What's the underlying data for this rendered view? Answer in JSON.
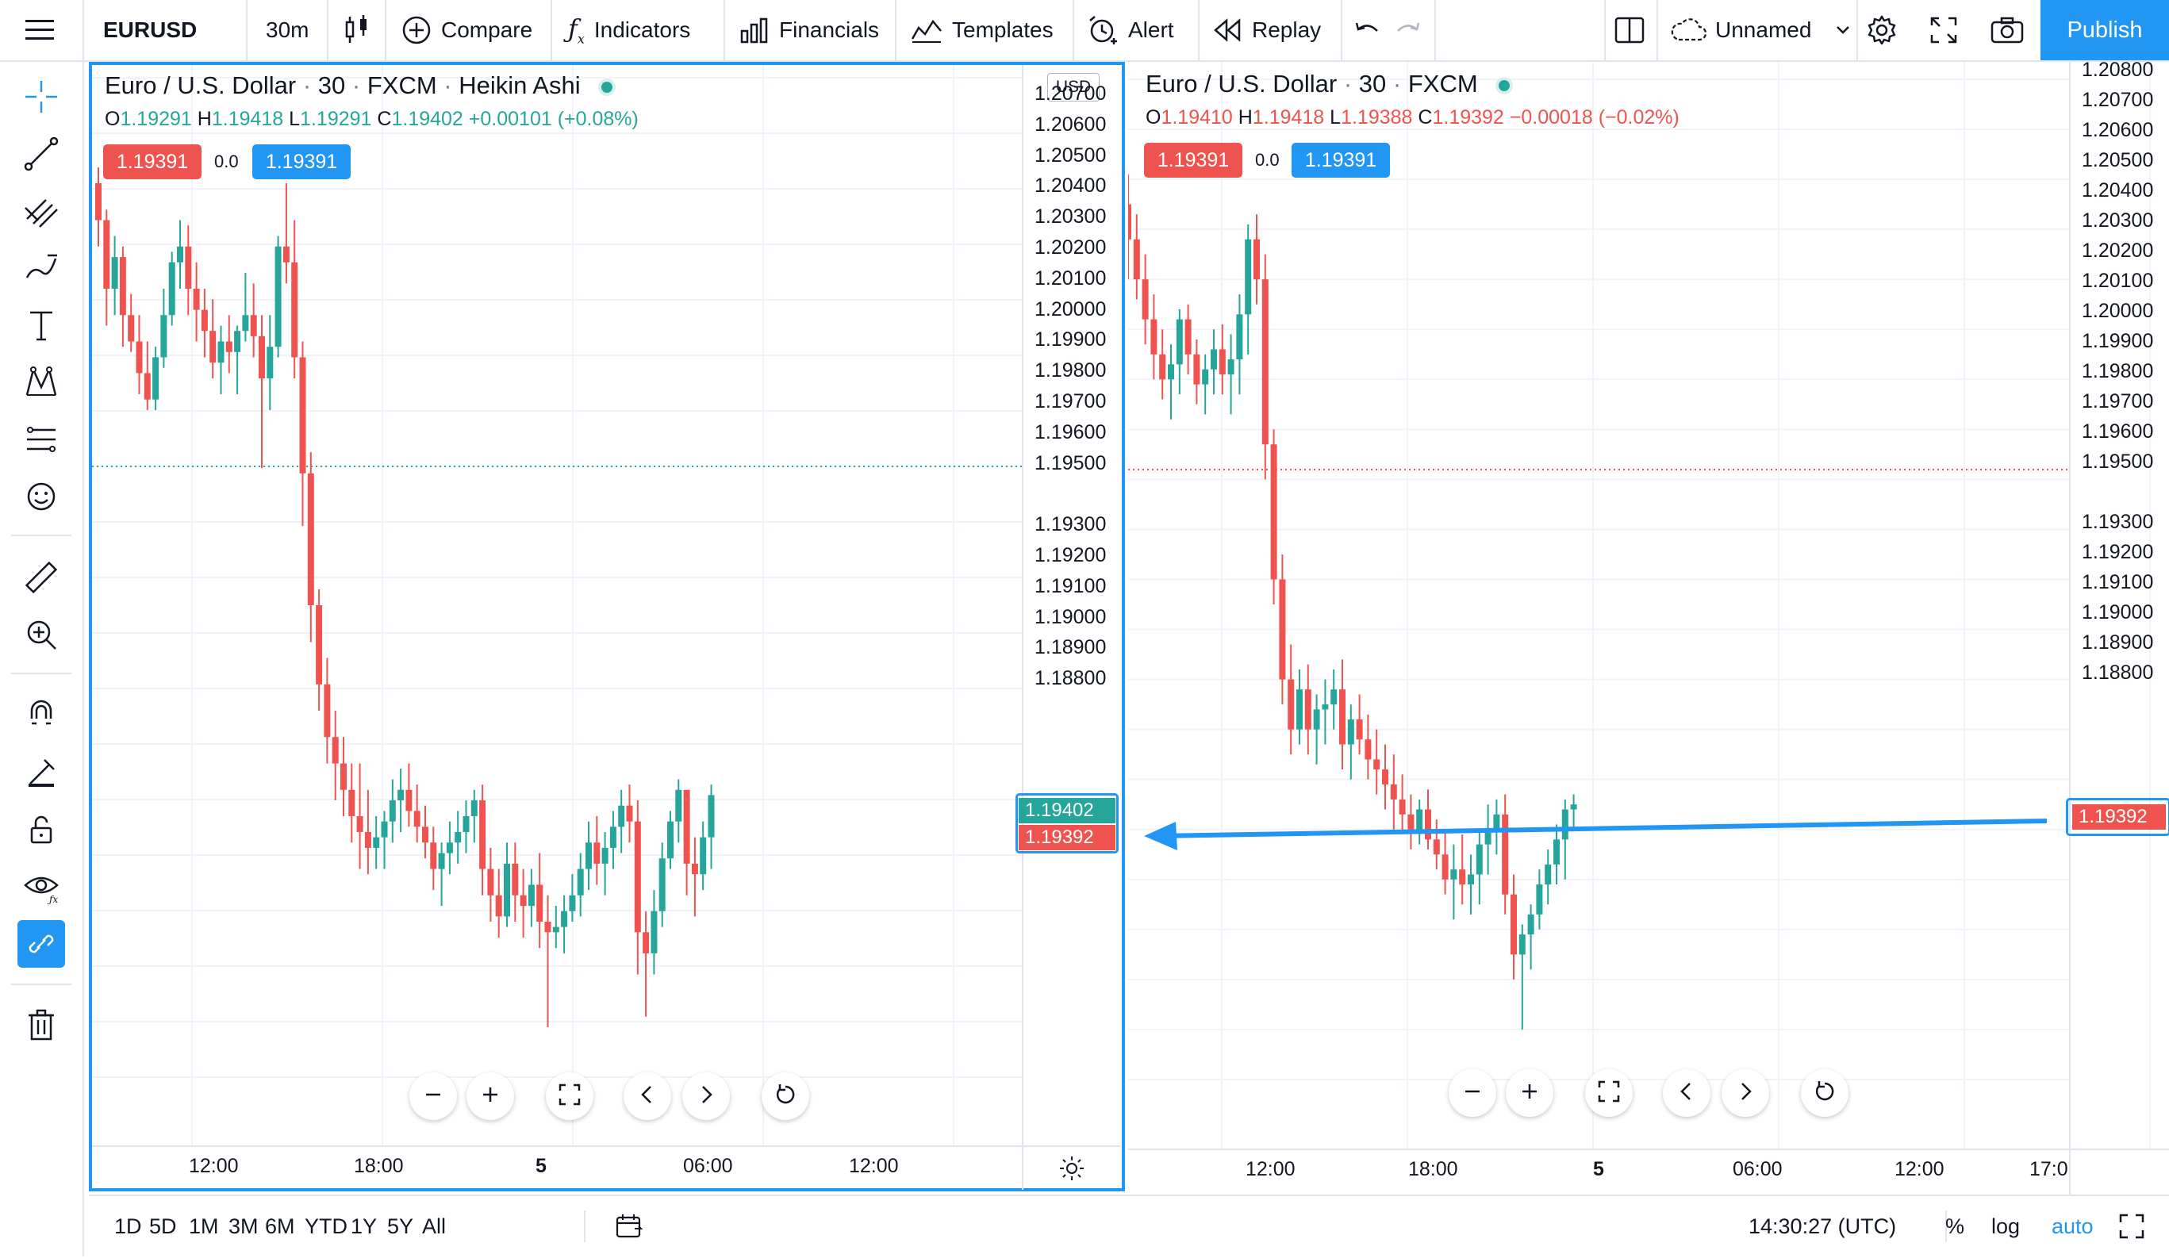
{
  "toolbar": {
    "symbol": "EURUSD",
    "interval": "30m",
    "compare": "Compare",
    "indicators": "Indicators",
    "financials": "Financials",
    "templates": "Templates",
    "alert": "Alert",
    "replay": "Replay",
    "layout_name": "Unnamed",
    "publish": "Publish"
  },
  "colors": {
    "up": "#26a69a",
    "down": "#ef5350",
    "accent": "#2196f3"
  },
  "left_chart": {
    "title": "Euro / U.S. Dollar",
    "interval": "30",
    "exchange": "FXCM",
    "chart_style": "Heikin Ashi",
    "ohlc": {
      "o_label": "O",
      "o": "1.19291",
      "h_label": "H",
      "h": "1.19418",
      "l_label": "L",
      "l": "1.19291",
      "c_label": "C",
      "c": "1.19402",
      "change": "+0.00101 (+0.08%)"
    },
    "sell_price": "1.19391",
    "spread": "0.0",
    "buy_price": "1.19391",
    "currency": "USD",
    "price_labels": [
      "1.20700",
      "1.20600",
      "1.20500",
      "1.20400",
      "1.20300",
      "1.20200",
      "1.20100",
      "1.20000",
      "1.19900",
      "1.19800",
      "1.19700",
      "1.19600",
      "1.19500",
      "1.19300",
      "1.19200",
      "1.19100",
      "1.19000",
      "1.18900",
      "1.18800"
    ],
    "last_price_tag": "1.19402",
    "close_price_tag": "1.19392",
    "time_labels": [
      "12:00",
      "18:00",
      "5",
      "06:00",
      "12:00"
    ]
  },
  "right_chart": {
    "title": "Euro / U.S. Dollar",
    "interval": "30",
    "exchange": "FXCM",
    "ohlc": {
      "o_label": "O",
      "o": "1.19410",
      "h_label": "H",
      "h": "1.19418",
      "l_label": "L",
      "l": "1.19388",
      "c_label": "C",
      "c": "1.19392",
      "change": "−0.00018 (−0.02%)"
    },
    "sell_price": "1.19391",
    "spread": "0.0",
    "buy_price": "1.19391",
    "price_labels": [
      "1.20800",
      "1.20700",
      "1.20600",
      "1.20500",
      "1.20400",
      "1.20300",
      "1.20200",
      "1.20100",
      "1.20000",
      "1.19900",
      "1.19800",
      "1.19700",
      "1.19600",
      "1.19500",
      "1.19300",
      "1.19200",
      "1.19100",
      "1.19000",
      "1.18900",
      "1.18800"
    ],
    "last_price_tag": "1.19392",
    "time_labels": [
      "12:00",
      "18:00",
      "5",
      "06:00",
      "12:00",
      "17:0"
    ]
  },
  "bottom": {
    "ranges": [
      "1D",
      "5D",
      "1M",
      "3M",
      "6M",
      "YTD",
      "1Y",
      "5Y",
      "All"
    ],
    "clock": "14:30:27 (UTC)",
    "percent": "%",
    "log": "log",
    "auto": "auto"
  },
  "chart_data": [
    {
      "type": "candlestick",
      "title": "Euro / U.S. Dollar · 30 · FXCM · Heikin Ashi",
      "ylim": [
        1.1875,
        1.2075
      ],
      "candles": [
        [
          1.2055,
          1.2058,
          1.2043,
          1.2048
        ],
        [
          1.2048,
          1.205,
          1.2028,
          1.2035
        ],
        [
          1.2035,
          1.2045,
          1.203,
          1.2041
        ],
        [
          1.2041,
          1.2043,
          1.2024,
          1.203
        ],
        [
          1.203,
          1.2034,
          1.2023,
          1.2025
        ],
        [
          1.2025,
          1.203,
          1.2015,
          1.2019
        ],
        [
          1.2019,
          1.2025,
          1.2012,
          1.2014
        ],
        [
          1.2014,
          1.2024,
          1.2012,
          1.2022
        ],
        [
          1.2022,
          1.2035,
          1.202,
          1.203
        ],
        [
          1.203,
          1.2042,
          1.2028,
          1.204
        ],
        [
          1.204,
          1.2048,
          1.2035,
          1.2043
        ],
        [
          1.2043,
          1.2047,
          1.203,
          1.2035
        ],
        [
          1.2035,
          1.204,
          1.2025,
          1.2031
        ],
        [
          1.2031,
          1.2035,
          1.2022,
          1.2027
        ],
        [
          1.2027,
          1.2033,
          1.2018,
          1.2021
        ],
        [
          1.2021,
          1.2028,
          1.2015,
          1.2025
        ],
        [
          1.2025,
          1.203,
          1.2019,
          1.2023
        ],
        [
          1.2023,
          1.2028,
          1.2015,
          1.2027
        ],
        [
          1.2027,
          1.2038,
          1.2025,
          1.203
        ],
        [
          1.203,
          1.2036,
          1.2022,
          1.2026
        ],
        [
          1.2026,
          1.203,
          1.2001,
          1.2018
        ],
        [
          1.2018,
          1.203,
          1.2012,
          1.2024
        ],
        [
          1.2024,
          1.2045,
          1.2022,
          1.2043
        ],
        [
          1.2043,
          1.2055,
          1.2036,
          1.204
        ],
        [
          1.204,
          1.2048,
          1.2018,
          1.2022
        ],
        [
          1.2022,
          1.2025,
          1.199,
          1.2
        ],
        [
          1.2,
          1.2004,
          1.1968,
          1.1975
        ],
        [
          1.1975,
          1.1978,
          1.1955,
          1.196
        ],
        [
          1.196,
          1.1965,
          1.1945,
          1.195
        ],
        [
          1.195,
          1.1955,
          1.1938,
          1.1945
        ],
        [
          1.1945,
          1.195,
          1.1935,
          1.194
        ],
        [
          1.194,
          1.1945,
          1.193,
          1.1935
        ],
        [
          1.1935,
          1.1945,
          1.1925,
          1.1932
        ],
        [
          1.1932,
          1.194,
          1.1924,
          1.1929
        ],
        [
          1.1929,
          1.1935,
          1.1925,
          1.1931
        ],
        [
          1.1931,
          1.1936,
          1.1925,
          1.1934
        ],
        [
          1.1934,
          1.1942,
          1.193,
          1.1938
        ],
        [
          1.1938,
          1.1944,
          1.1932,
          1.194
        ],
        [
          1.194,
          1.1945,
          1.1933,
          1.1936
        ],
        [
          1.1936,
          1.1941,
          1.193,
          1.1933
        ],
        [
          1.1933,
          1.1937,
          1.1927,
          1.193
        ],
        [
          1.193,
          1.1933,
          1.1921,
          1.1925
        ],
        [
          1.1925,
          1.193,
          1.1918,
          1.1928
        ],
        [
          1.1928,
          1.1934,
          1.1924,
          1.193
        ],
        [
          1.193,
          1.1936,
          1.1926,
          1.1932
        ],
        [
          1.1932,
          1.1938,
          1.1928,
          1.1935
        ],
        [
          1.1935,
          1.194,
          1.193,
          1.1938
        ],
        [
          1.1938,
          1.1941,
          1.192,
          1.1925
        ],
        [
          1.1925,
          1.1929,
          1.1915,
          1.192
        ],
        [
          1.192,
          1.1925,
          1.1912,
          1.1916
        ],
        [
          1.1916,
          1.193,
          1.1914,
          1.1926
        ],
        [
          1.1926,
          1.193,
          1.1915,
          1.192
        ],
        [
          1.192,
          1.1925,
          1.1912,
          1.1918
        ],
        [
          1.1918,
          1.1925,
          1.1914,
          1.1922
        ],
        [
          1.1922,
          1.1928,
          1.191,
          1.1915
        ],
        [
          1.1915,
          1.192,
          1.1895,
          1.1913
        ],
        [
          1.1913,
          1.1918,
          1.191,
          1.1914
        ],
        [
          1.1914,
          1.192,
          1.1909,
          1.1917
        ],
        [
          1.1917,
          1.1924,
          1.1915,
          1.192
        ],
        [
          1.192,
          1.1928,
          1.1916,
          1.1925
        ],
        [
          1.1925,
          1.1934,
          1.1921,
          1.193
        ],
        [
          1.193,
          1.1935,
          1.1922,
          1.1926
        ],
        [
          1.1926,
          1.1932,
          1.192,
          1.1929
        ],
        [
          1.1929,
          1.1936,
          1.1925,
          1.1933
        ],
        [
          1.1933,
          1.194,
          1.1928,
          1.1937
        ],
        [
          1.1937,
          1.1941,
          1.193,
          1.1934
        ],
        [
          1.1934,
          1.1938,
          1.1905,
          1.1913
        ],
        [
          1.1913,
          1.1917,
          1.1897,
          1.1909
        ],
        [
          1.1909,
          1.1921,
          1.1905,
          1.1917
        ],
        [
          1.1917,
          1.193,
          1.1914,
          1.1927
        ],
        [
          1.1927,
          1.1936,
          1.1925,
          1.1934
        ],
        [
          1.1934,
          1.1942,
          1.193,
          1.194
        ],
        [
          1.194,
          1.1938,
          1.192,
          1.1926
        ],
        [
          1.1926,
          1.1931,
          1.1916,
          1.1924
        ],
        [
          1.1924,
          1.1934,
          1.1921,
          1.1931
        ],
        [
          1.1931,
          1.1941,
          1.1925,
          1.1939
        ]
      ]
    },
    {
      "type": "candlestick",
      "title": "Euro / U.S. Dollar · 30 · FXCM",
      "ylim": [
        1.1875,
        1.2085
      ],
      "candles": [
        [
          1.206,
          1.2066,
          1.2045,
          1.2053
        ],
        [
          1.2053,
          1.2058,
          1.2041,
          1.2045
        ],
        [
          1.2045,
          1.205,
          1.2032,
          1.2037
        ],
        [
          1.2037,
          1.2042,
          1.2025,
          1.203
        ],
        [
          1.203,
          1.2035,
          1.2021,
          1.2025
        ],
        [
          1.2025,
          1.2032,
          1.2017,
          1.2028
        ],
        [
          1.2028,
          1.2039,
          1.2022,
          1.2037
        ],
        [
          1.2037,
          1.204,
          1.2026,
          1.203
        ],
        [
          1.203,
          1.2033,
          1.202,
          1.2024
        ],
        [
          1.2024,
          1.203,
          1.2018,
          1.2027
        ],
        [
          1.2027,
          1.2035,
          1.2022,
          1.2031
        ],
        [
          1.2031,
          1.2036,
          1.2022,
          1.2026
        ],
        [
          1.2026,
          1.2034,
          1.2018,
          1.2029
        ],
        [
          1.2029,
          1.2042,
          1.2022,
          1.2038
        ],
        [
          1.2038,
          1.2056,
          1.203,
          1.2053
        ],
        [
          1.2053,
          1.2058,
          1.204,
          1.2045
        ],
        [
          1.2045,
          1.205,
          1.2005,
          1.2012
        ],
        [
          1.2012,
          1.2015,
          1.198,
          1.1985
        ],
        [
          1.1985,
          1.199,
          1.196,
          1.1965
        ],
        [
          1.1965,
          1.1972,
          1.195,
          1.1955
        ],
        [
          1.1955,
          1.1967,
          1.1952,
          1.1963
        ],
        [
          1.1963,
          1.1968,
          1.195,
          1.1955
        ],
        [
          1.1955,
          1.1962,
          1.1948,
          1.1959
        ],
        [
          1.1959,
          1.1965,
          1.1952,
          1.196
        ],
        [
          1.196,
          1.1967,
          1.1955,
          1.1963
        ],
        [
          1.1963,
          1.1969,
          1.1947,
          1.1952
        ],
        [
          1.1952,
          1.196,
          1.1945,
          1.1957
        ],
        [
          1.1957,
          1.1962,
          1.195,
          1.1953
        ],
        [
          1.1953,
          1.1958,
          1.1945,
          1.1949
        ],
        [
          1.1949,
          1.1955,
          1.1942,
          1.1947
        ],
        [
          1.1947,
          1.1952,
          1.1939,
          1.1944
        ],
        [
          1.1944,
          1.195,
          1.1935,
          1.1941
        ],
        [
          1.1941,
          1.1946,
          1.1934,
          1.1938
        ],
        [
          1.1938,
          1.1942,
          1.1931,
          1.1935
        ],
        [
          1.1935,
          1.1941,
          1.1932,
          1.1939
        ],
        [
          1.1939,
          1.1943,
          1.1931,
          1.1933
        ],
        [
          1.1933,
          1.1937,
          1.1927,
          1.193
        ],
        [
          1.193,
          1.1935,
          1.1922,
          1.1925
        ],
        [
          1.1925,
          1.1932,
          1.1917,
          1.1927
        ],
        [
          1.1927,
          1.1934,
          1.192,
          1.1924
        ],
        [
          1.1924,
          1.193,
          1.1918,
          1.1926
        ],
        [
          1.1926,
          1.1935,
          1.192,
          1.1932
        ],
        [
          1.1932,
          1.194,
          1.1926,
          1.1935
        ],
        [
          1.1935,
          1.1941,
          1.193,
          1.1938
        ],
        [
          1.1938,
          1.1942,
          1.1918,
          1.1922
        ],
        [
          1.1922,
          1.1926,
          1.1905,
          1.191
        ],
        [
          1.191,
          1.1916,
          1.1895,
          1.1914
        ],
        [
          1.1914,
          1.192,
          1.1907,
          1.1918
        ],
        [
          1.1918,
          1.1927,
          1.1915,
          1.1924
        ],
        [
          1.1924,
          1.1931,
          1.192,
          1.1928
        ],
        [
          1.1928,
          1.1936,
          1.1924,
          1.1933
        ],
        [
          1.1933,
          1.1941,
          1.1925,
          1.1939
        ],
        [
          1.1939,
          1.1942,
          1.1935,
          1.194
        ]
      ]
    }
  ]
}
